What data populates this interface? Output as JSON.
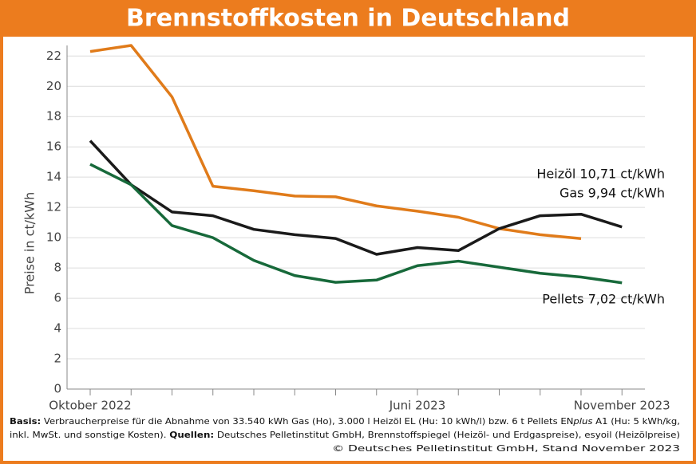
{
  "chart_data": {
    "type": "line",
    "title": "Brennstoffkosten in Deutschland",
    "y_label": "Preise in ct/kWh",
    "categories": [
      "Oktober 2022",
      null,
      null,
      null,
      null,
      null,
      null,
      null,
      "Juni 2023",
      null,
      null,
      null,
      null,
      "November 2023"
    ],
    "series": [
      {
        "name": "Gas",
        "color": "#e07b1a",
        "values": [
          22.3,
          22.7,
          19.3,
          13.4,
          13.1,
          12.75,
          12.7,
          12.1,
          11.75,
          11.35,
          10.6,
          10.2,
          9.94,
          null
        ]
      },
      {
        "name": "Heizöl",
        "color": "#1a1a1a",
        "values": [
          16.4,
          13.5,
          11.7,
          11.45,
          10.55,
          10.2,
          9.95,
          8.9,
          9.35,
          9.15,
          10.6,
          11.45,
          11.55,
          10.71
        ]
      },
      {
        "name": "Pellets",
        "color": "#17693a",
        "values": [
          14.85,
          13.5,
          10.8,
          10.0,
          8.5,
          7.5,
          7.05,
          7.2,
          8.15,
          8.45,
          8.05,
          7.65,
          7.4,
          7.02
        ]
      }
    ],
    "annotations": [
      "Heizöl 10,71 ct/kWh",
      "Gas 9,94 ct/kWh",
      "Pellets 7,02 ct/kWh"
    ],
    "ylim": [
      0,
      22.7
    ],
    "yticks": [
      0,
      2,
      4,
      6,
      8,
      10,
      12,
      14,
      16,
      18,
      20,
      22
    ],
    "grid": true,
    "footnote": [
      [
        "Basis:",
        " Verbraucherpreise für die Abnahme von 33.540 kWh Gas (Ho), 3.000 l Heizöl EL (Hu: 10 kWh/l) bzw. 6 t Pellets EN",
        "plus",
        " A1 (Hu: 5 kWh/kg,"
      ],
      [
        "inkl. MwSt. und sonstige Kosten). ",
        "Quellen:",
        " Deutsches Pelletinstitut GmbH, Brennstoffspiegel (Heizöl- und Erdgaspreise), esyoil (Heizölpreise)"
      ],
      [
        "© Deutsches Pelletinstitut GmbH, Stand November 2023"
      ]
    ]
  }
}
